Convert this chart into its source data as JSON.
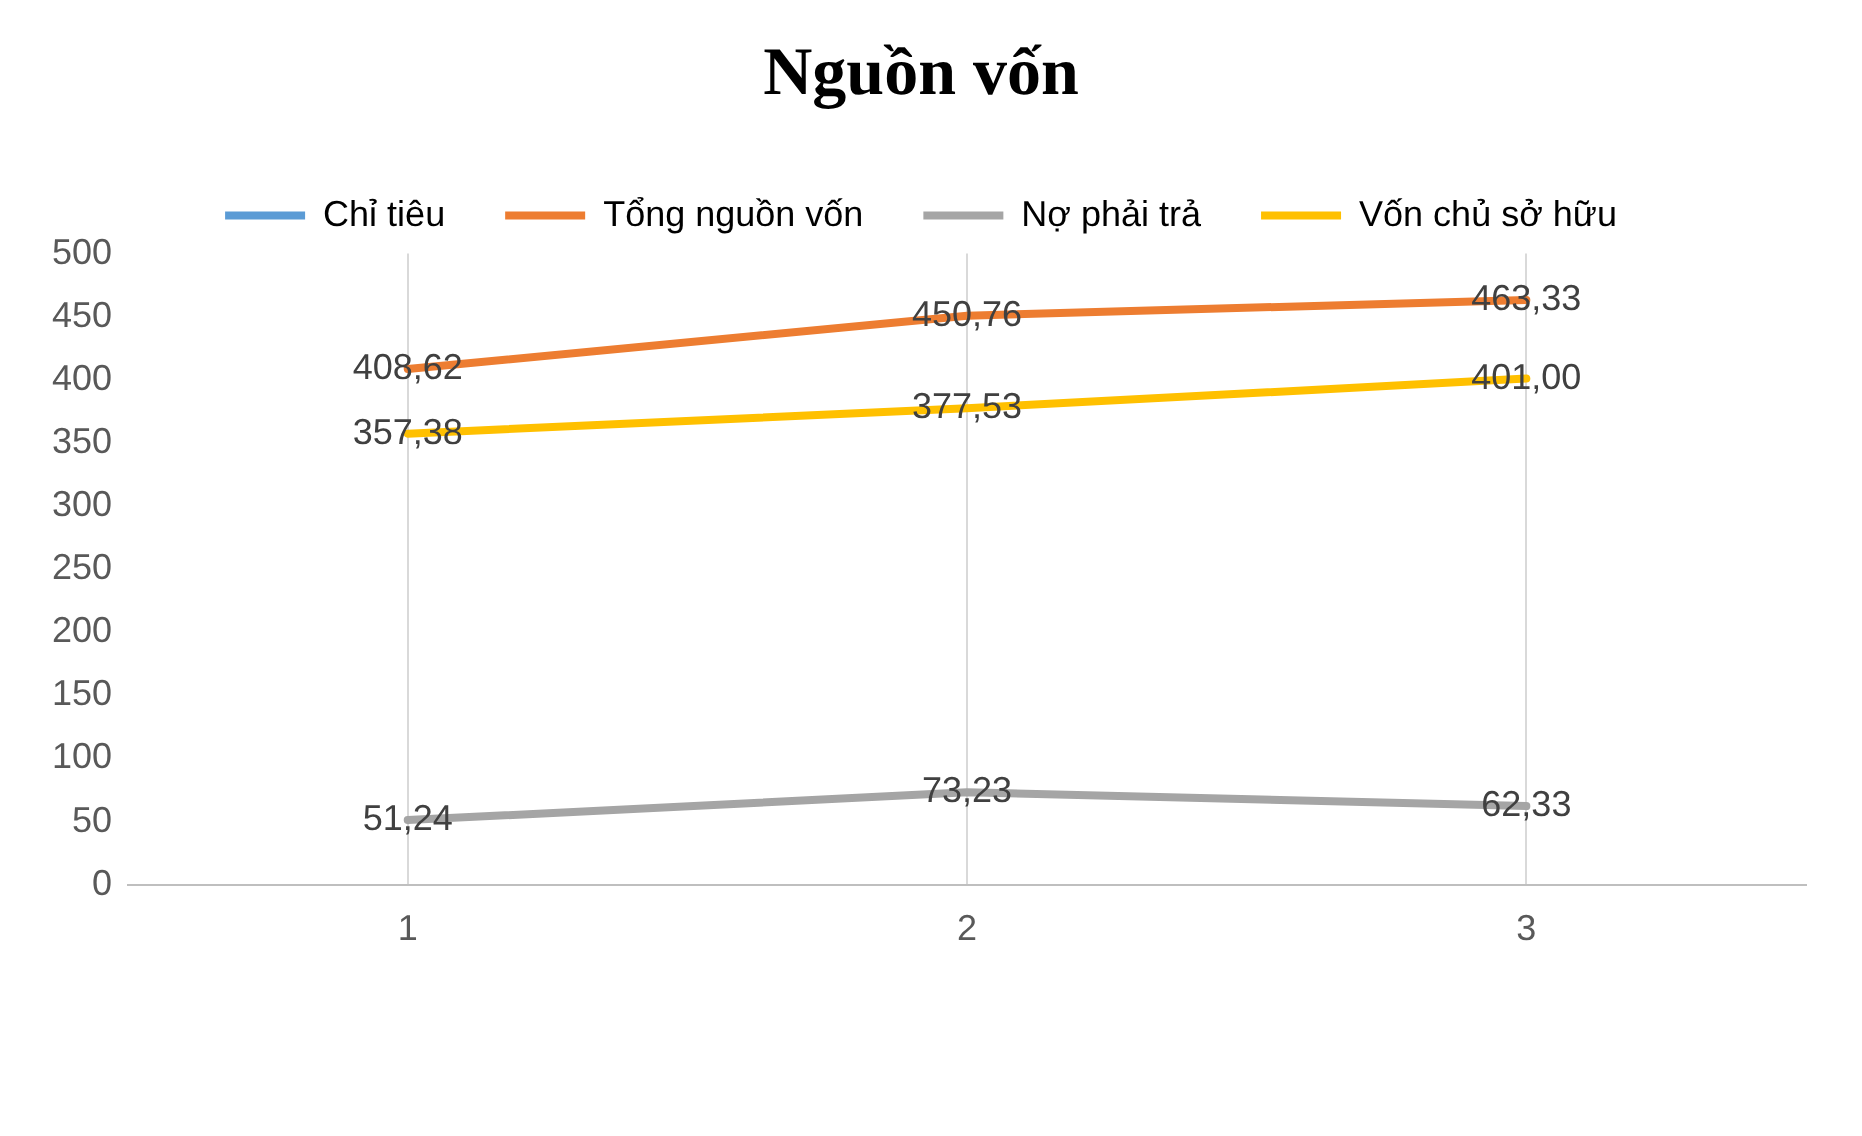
{
  "chart_data": {
    "type": "line",
    "title": "Nguồn vốn",
    "categories": [
      "1",
      "2",
      "3"
    ],
    "series": [
      {
        "name": "Chỉ tiêu",
        "color": "#5b9bd5",
        "values": [
          null,
          null,
          null
        ]
      },
      {
        "name": "Tổng nguồn vốn",
        "color": "#ed7d31",
        "values": [
          408.62,
          450.76,
          463.33
        ],
        "value_labels": [
          "408,62",
          "450,76",
          "463,33"
        ]
      },
      {
        "name": "Nợ phải trả",
        "color": "#a5a5a5",
        "values": [
          51.24,
          73.23,
          62.33
        ],
        "value_labels": [
          "51,24",
          "73,23",
          "62,33"
        ]
      },
      {
        "name": "Vốn chủ sở hữu",
        "color": "#ffc000",
        "values": [
          357.38,
          377.53,
          401.0
        ],
        "value_labels": [
          "357,38",
          "377,53",
          "401,00"
        ]
      }
    ],
    "ylim": [
      0,
      500
    ],
    "yticks": [
      0,
      50,
      100,
      150,
      200,
      250,
      300,
      350,
      400,
      450,
      500
    ],
    "grid": "x",
    "legend": "top",
    "marker": "none",
    "line_style": "solid"
  }
}
